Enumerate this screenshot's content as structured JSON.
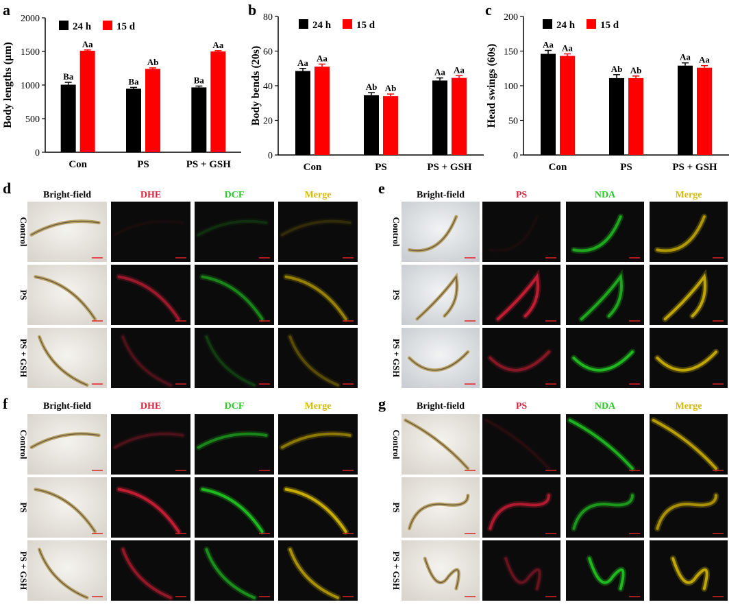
{
  "panels": {
    "a": "a",
    "b": "b",
    "c": "c",
    "d": "d",
    "e": "e",
    "f": "f",
    "g": "g"
  },
  "legend": {
    "series1": "24 h",
    "series2": "15 d"
  },
  "colors": {
    "series1": "#000000",
    "series2": "#ff0000",
    "dhe": "#e0203a",
    "dcf": "#22cc22",
    "merge": "#d6b800",
    "ps": "#e0203a",
    "nda": "#22cc22"
  },
  "chart_data": [
    {
      "type": "bar",
      "panel": "a",
      "categories": [
        "Con",
        "PS",
        "PS + GSH"
      ],
      "ylabel": "Body lengths (μm)",
      "ylim": [
        0,
        2000
      ],
      "yticks": [
        "0",
        "500",
        "1000",
        "1500",
        "2000"
      ],
      "series": [
        {
          "name": "24 h",
          "values": [
            1005,
            945,
            965
          ],
          "errors": [
            35,
            20,
            20
          ],
          "labels": [
            "Ba",
            "Ba",
            "Ba"
          ]
        },
        {
          "name": "15 d",
          "values": [
            1510,
            1240,
            1500
          ],
          "errors": [
            12,
            15,
            12
          ],
          "labels": [
            "Aa",
            "Ab",
            "Aa"
          ]
        }
      ]
    },
    {
      "type": "bar",
      "panel": "b",
      "categories": [
        "Con",
        "PS",
        "PS + GSH"
      ],
      "ylabel": "Body bends (20s)",
      "ylim": [
        0,
        80
      ],
      "yticks": [
        "0",
        "20",
        "40",
        "60",
        "80"
      ],
      "series": [
        {
          "name": "24 h",
          "values": [
            48.5,
            34.5,
            43
          ],
          "errors": [
            1.5,
            1.5,
            1.5
          ],
          "labels": [
            "Aa",
            "Ab",
            "Aa"
          ]
        },
        {
          "name": "15 d",
          "values": [
            51,
            34,
            44.5
          ],
          "errors": [
            1.5,
            1.2,
            1.3
          ],
          "labels": [
            "Aa",
            "Ab",
            "Aa"
          ]
        }
      ]
    },
    {
      "type": "bar",
      "panel": "c",
      "categories": [
        "Con",
        "PS",
        "PS + GSH"
      ],
      "ylabel": "Head swings (60s)",
      "ylim": [
        0,
        200
      ],
      "yticks": [
        "0",
        "50",
        "100",
        "150",
        "200"
      ],
      "series": [
        {
          "name": "24 h",
          "values": [
            146,
            111,
            129
          ],
          "errors": [
            5,
            5,
            4
          ],
          "labels": [
            "Aa",
            "Ab",
            "Aa"
          ]
        },
        {
          "name": "15 d",
          "values": [
            143,
            111,
            126
          ],
          "errors": [
            3,
            3,
            3
          ],
          "labels": [
            "Aa",
            "Ab",
            "Aa"
          ]
        }
      ]
    }
  ],
  "micrograph_panels": [
    {
      "panel": "d",
      "columns": [
        "Bright-field",
        "DHE",
        "DCF",
        "Merge"
      ],
      "rows": [
        "Control",
        "PS",
        "PS + GSH"
      ]
    },
    {
      "panel": "e",
      "columns": [
        "Bright-field",
        "PS",
        "NDA",
        "Merge"
      ],
      "rows": [
        "Control",
        "PS",
        "PS + GSH"
      ]
    },
    {
      "panel": "f",
      "columns": [
        "Bright-field",
        "DHE",
        "DCF",
        "Merge"
      ],
      "rows": [
        "Control",
        "PS",
        "PS + GSH"
      ]
    },
    {
      "panel": "g",
      "columns": [
        "Bright-field",
        "PS",
        "NDA",
        "Merge"
      ],
      "rows": [
        "Control",
        "PS",
        "PS + GSH"
      ]
    }
  ]
}
